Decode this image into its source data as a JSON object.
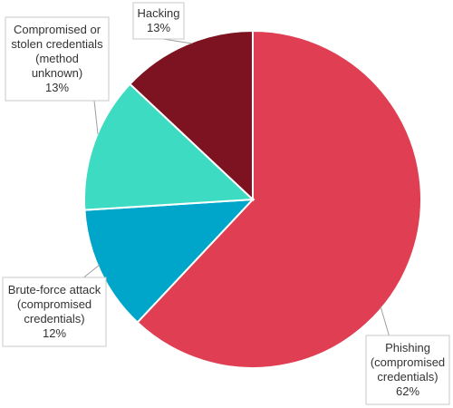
{
  "chart_data": {
    "type": "pie",
    "title": "",
    "start_angle_deg": 0,
    "direction": "clockwise",
    "slices": [
      {
        "name": "Phishing (compromised credentials)",
        "label_lines": [
          "Phishing",
          "(compromised",
          "credentials)"
        ],
        "value": 62,
        "value_label": "62%",
        "color": "#e03e52"
      },
      {
        "name": "Brute-force attack (compromised credentials)",
        "label_lines": [
          "Brute-force attack",
          "(compromised",
          "credentials)"
        ],
        "value": 12,
        "value_label": "12%",
        "color": "#00a6c9"
      },
      {
        "name": "Compromised or stolen credentials (method unknown)",
        "label_lines": [
          "Compromised or",
          "stolen credentials",
          "(method",
          "unknown)"
        ],
        "value": 13,
        "value_label": "13%",
        "color": "#3ddbc2"
      },
      {
        "name": "Hacking",
        "label_lines": [
          "Hacking"
        ],
        "value": 13,
        "value_label": "13%",
        "color": "#7d1220"
      }
    ]
  }
}
